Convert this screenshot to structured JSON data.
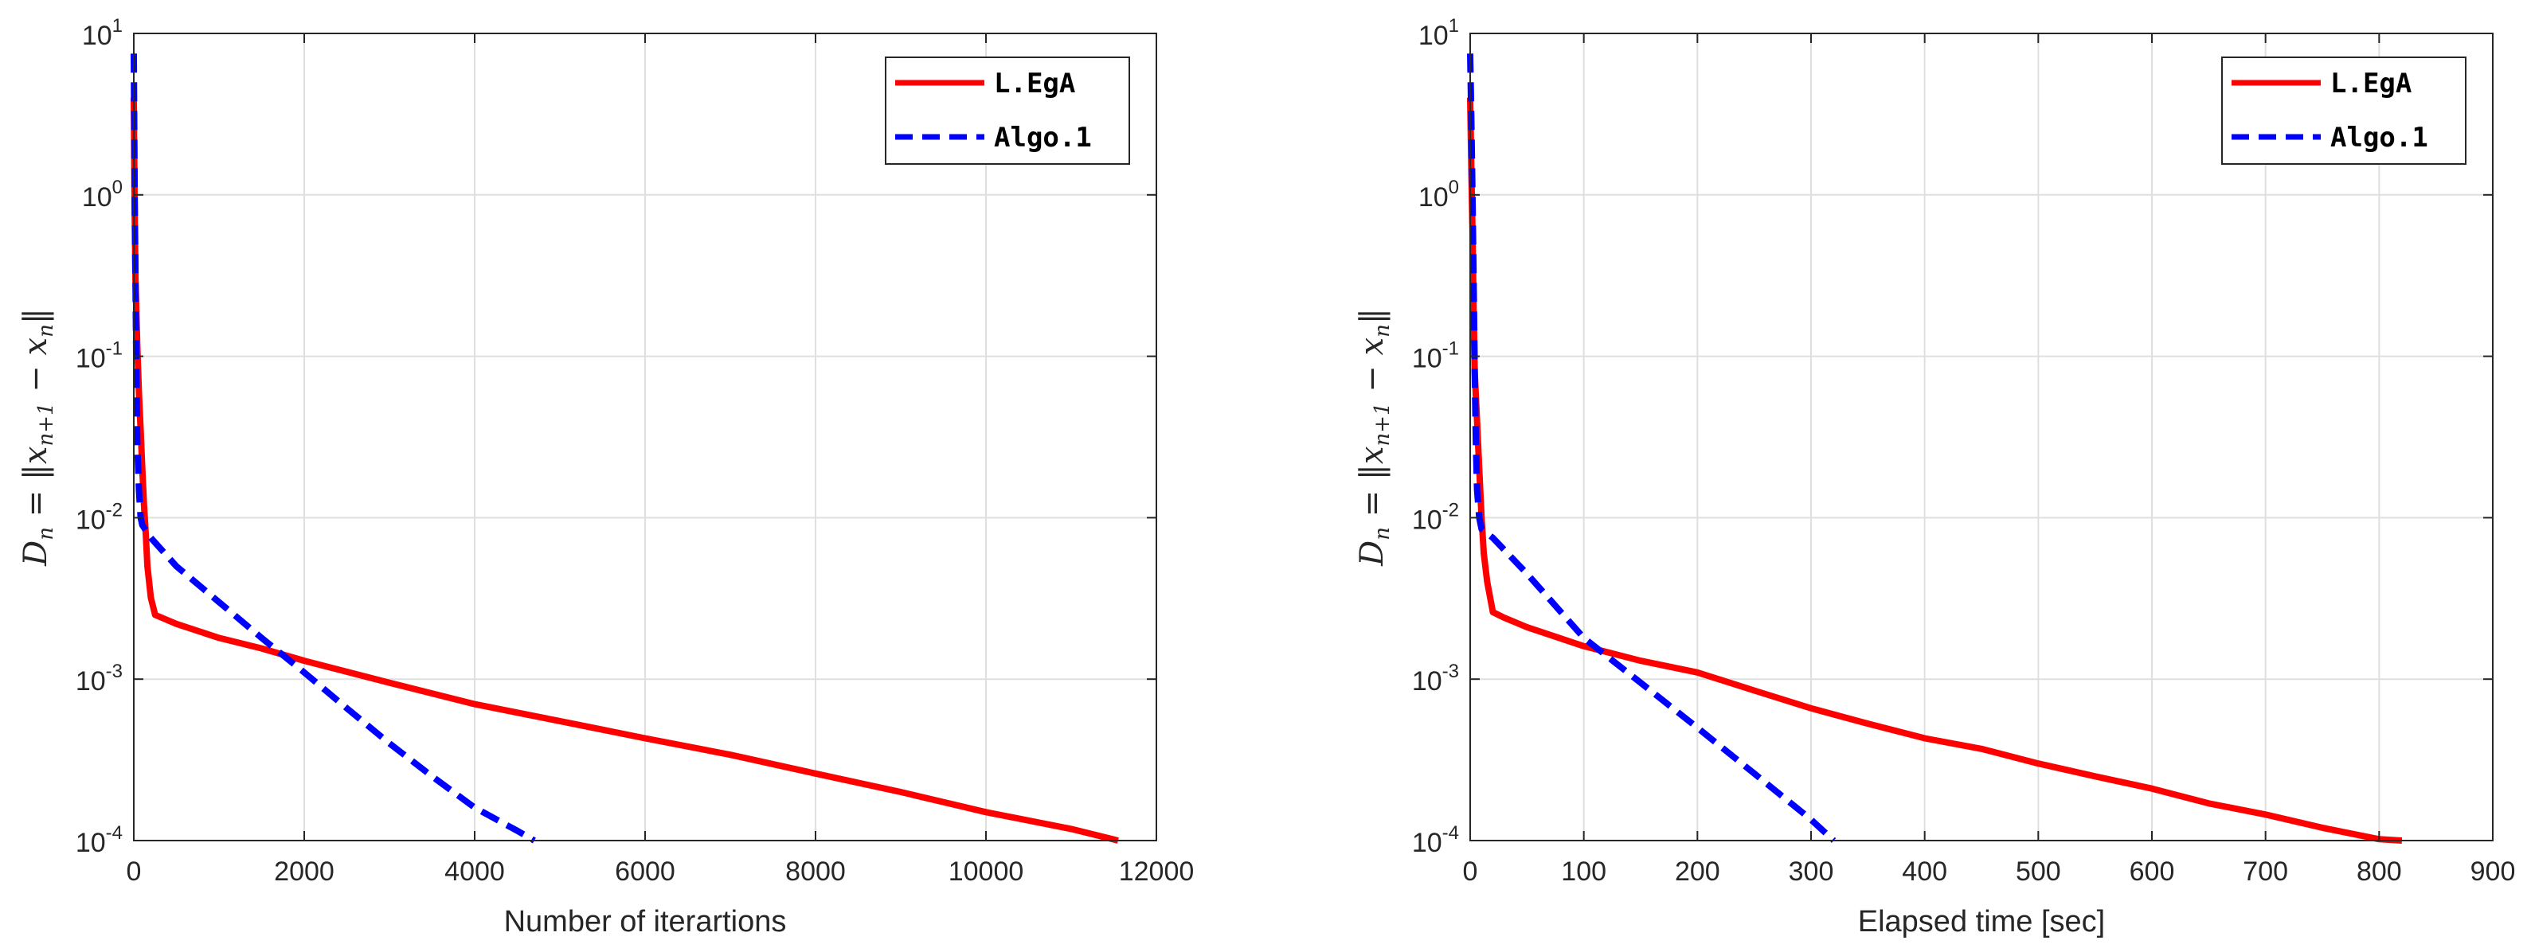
{
  "chart_data": [
    {
      "type": "line",
      "yscale": "log",
      "title": "",
      "xlabel": "Number of iterartions",
      "ylabel": "D_n = ||x_{n+1} − x_n||",
      "ylabel_parts": {
        "lhs": "D",
        "lhs_sub": "n",
        "eq": " = ‖",
        "a": "x",
        "a_sub": "n+1",
        "minus": " − ",
        "b": "x",
        "b_sub": "n",
        "close": "‖"
      },
      "xlim": [
        0,
        12000
      ],
      "ylim": [
        0.0001,
        10
      ],
      "xticks": [
        0,
        2000,
        4000,
        6000,
        8000,
        10000,
        12000
      ],
      "xtick_labels": [
        "0",
        "2000",
        "4000",
        "6000",
        "8000",
        "10000",
        "12000"
      ],
      "yticks": [
        0.0001,
        0.001,
        0.01,
        0.1,
        1,
        10
      ],
      "ytick_labels": [
        {
          "base": "10",
          "exp": "-4"
        },
        {
          "base": "10",
          "exp": "-3"
        },
        {
          "base": "10",
          "exp": "-2"
        },
        {
          "base": "10",
          "exp": "-1"
        },
        {
          "base": "10",
          "exp": "0"
        },
        {
          "base": "10",
          "exp": "1"
        }
      ],
      "grid": true,
      "legend_position": "top-right",
      "series": [
        {
          "name": "L.EgA",
          "color": "#ff0000",
          "style": "solid",
          "x": [
            0,
            5,
            10,
            20,
            40,
            60,
            80,
            100,
            120,
            140,
            160,
            200,
            250,
            500,
            1000,
            1500,
            2000,
            3000,
            4000,
            5000,
            6000,
            7000,
            8000,
            9000,
            10000,
            11000,
            11550
          ],
          "y": [
            4,
            2,
            0.8,
            0.3,
            0.12,
            0.06,
            0.035,
            0.02,
            0.012,
            0.008,
            0.005,
            0.0032,
            0.0025,
            0.0022,
            0.0018,
            0.00155,
            0.0013,
            0.00095,
            0.0007,
            0.00055,
            0.00043,
            0.00034,
            0.00026,
            0.0002,
            0.00015,
            0.000118,
            0.0001
          ]
        },
        {
          "name": "Algo.1",
          "color": "#0000ff",
          "style": "dashed",
          "x": [
            0,
            5,
            10,
            20,
            30,
            40,
            60,
            80,
            100,
            200,
            500,
            1000,
            1500,
            2000,
            2500,
            3000,
            3500,
            4000,
            4500,
            4700
          ],
          "y": [
            7.5,
            3,
            1,
            0.3,
            0.08,
            0.03,
            0.015,
            0.01,
            0.009,
            0.0075,
            0.005,
            0.003,
            0.0018,
            0.0011,
            0.00066,
            0.0004,
            0.00025,
            0.00016,
            0.000115,
            0.0001
          ]
        }
      ]
    },
    {
      "type": "line",
      "yscale": "log",
      "title": "",
      "xlabel": "Elapsed time [sec]",
      "ylabel": "D_n = ||x_{n+1} − x_n||",
      "ylabel_parts": {
        "lhs": "D",
        "lhs_sub": "n",
        "eq": " = ‖",
        "a": "x",
        "a_sub": "n+1",
        "minus": " − ",
        "b": "x",
        "b_sub": "n",
        "close": "‖"
      },
      "xlim": [
        0,
        900
      ],
      "ylim": [
        0.0001,
        10
      ],
      "xticks": [
        0,
        100,
        200,
        300,
        400,
        500,
        600,
        700,
        800,
        900
      ],
      "xtick_labels": [
        "0",
        "100",
        "200",
        "300",
        "400",
        "500",
        "600",
        "700",
        "800",
        "900"
      ],
      "yticks": [
        0.0001,
        0.001,
        0.01,
        0.1,
        1,
        10
      ],
      "ytick_labels": [
        {
          "base": "10",
          "exp": "-4"
        },
        {
          "base": "10",
          "exp": "-3"
        },
        {
          "base": "10",
          "exp": "-2"
        },
        {
          "base": "10",
          "exp": "-1"
        },
        {
          "base": "10",
          "exp": "0"
        },
        {
          "base": "10",
          "exp": "1"
        }
      ],
      "grid": true,
      "legend_position": "top-right",
      "series": [
        {
          "name": "L.EgA",
          "color": "#ff0000",
          "style": "solid",
          "x": [
            0,
            1,
            2,
            3,
            4,
            6,
            8,
            10,
            12,
            15,
            20,
            30,
            50,
            100,
            150,
            200,
            250,
            300,
            350,
            400,
            450,
            500,
            550,
            600,
            650,
            700,
            750,
            800,
            820
          ],
          "y": [
            4,
            1.5,
            0.6,
            0.2,
            0.08,
            0.04,
            0.02,
            0.01,
            0.006,
            0.004,
            0.0026,
            0.0024,
            0.0021,
            0.0016,
            0.0013,
            0.0011,
            0.00085,
            0.00066,
            0.00053,
            0.00043,
            0.00037,
            0.0003,
            0.00025,
            0.00021,
            0.00017,
            0.000145,
            0.00012,
            0.000102,
            0.0001
          ]
        },
        {
          "name": "Algo.1",
          "color": "#0000ff",
          "style": "dashed",
          "x": [
            0,
            1,
            2,
            3,
            4,
            5,
            6,
            8,
            10,
            20,
            50,
            100,
            150,
            200,
            250,
            300,
            320
          ],
          "y": [
            7.5,
            3,
            1,
            0.3,
            0.08,
            0.03,
            0.015,
            0.01,
            0.0085,
            0.0075,
            0.0045,
            0.0018,
            0.00095,
            0.0005,
            0.00026,
            0.000135,
            0.0001
          ]
        }
      ]
    }
  ]
}
